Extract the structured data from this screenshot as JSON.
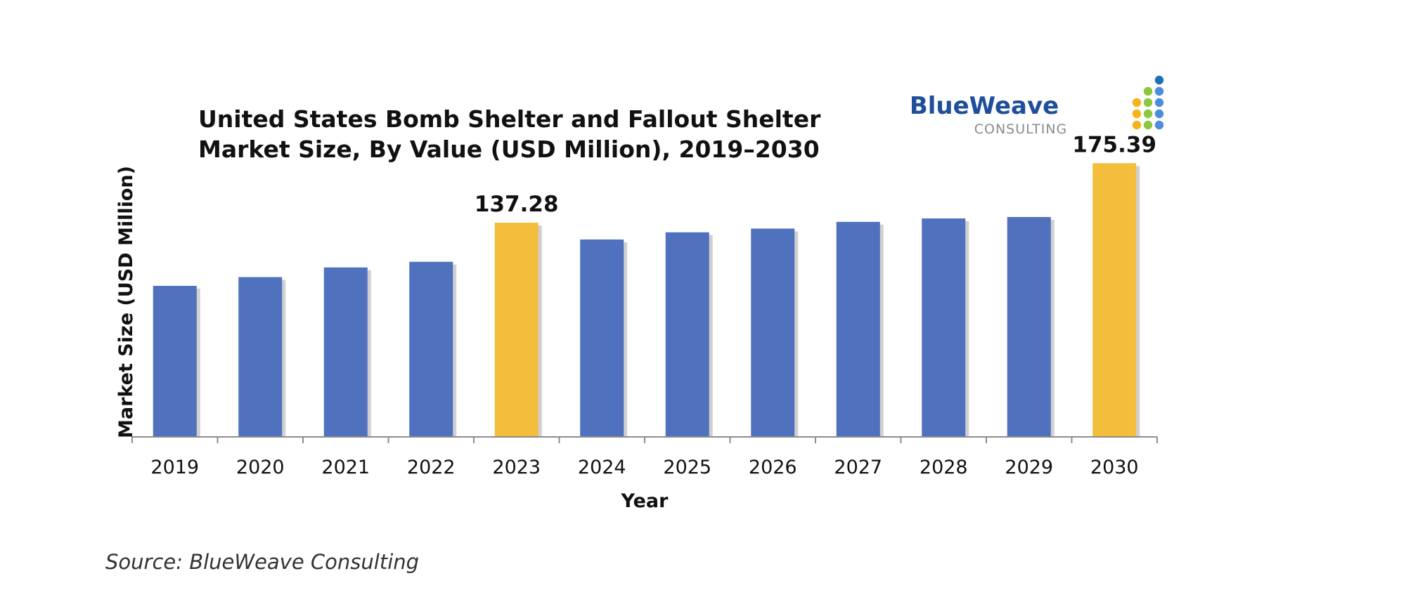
{
  "chart_data": {
    "type": "bar",
    "title": [
      "United States Bomb Shelter and Fallout Shelter",
      "Market Size, By Value (USD Million), 2019–2030"
    ],
    "xlabel": "Year",
    "ylabel": "Market Size (USD Million)",
    "categories": [
      "2019",
      "2020",
      "2021",
      "2022",
      "2023",
      "2024",
      "2025",
      "2026",
      "2027",
      "2028",
      "2029",
      "2030"
    ],
    "values": [
      96.8,
      102.4,
      108.6,
      112.2,
      137.28,
      126.5,
      131.1,
      133.5,
      137.8,
      140.0,
      140.9,
      175.39
    ],
    "data_labels": [
      {
        "index": 4,
        "text": "137.28"
      },
      {
        "index": 11,
        "text": "175.39"
      }
    ],
    "highlight_indices": [
      4,
      11
    ],
    "ylim": [
      0,
      185
    ],
    "grid": false,
    "y_axis_ticks_shown": false,
    "colors": {
      "bar": "#4f71be",
      "highlight": "#f3be3c",
      "axis": "#8c8c8c"
    }
  },
  "source": "Source: BlueWeave Consulting",
  "logo": {
    "name": "BlueWeave",
    "subtitle": "CONSULTING",
    "dot_colors": [
      "#f5b21b",
      "#8dc63f",
      "#1f6fb8",
      "#4c8cd8"
    ]
  }
}
